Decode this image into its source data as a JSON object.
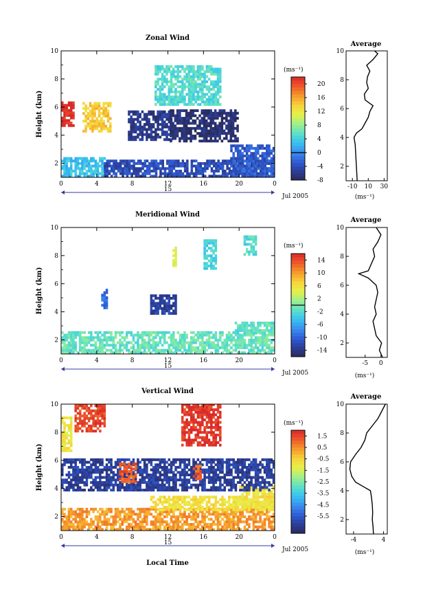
{
  "figure": {
    "date_label": "Jul 2005",
    "xlabel": "Local Time",
    "day_label": "15",
    "unit_label": "(ms⁻¹)",
    "average_title": "Average"
  },
  "chart_data": [
    {
      "type": "heatmap",
      "title": "Zonal Wind",
      "ylabel": "Height (km)",
      "xlim": [
        0,
        24
      ],
      "ylim": [
        1,
        10
      ],
      "xticks": [
        "0",
        "4",
        "8",
        "12",
        "16",
        "20",
        "0"
      ],
      "yticks": [
        "2",
        "4",
        "6",
        "8",
        "10"
      ],
      "colorbar": {
        "unit": "(ms⁻¹)",
        "range": [
          -8,
          22
        ],
        "ticks": [
          "20",
          "16",
          "12",
          "8",
          "4",
          "0",
          "-4",
          "-8"
        ],
        "tick_values": [
          20,
          16,
          12,
          8,
          4,
          0,
          -4,
          -8
        ],
        "contour_level": 0
      },
      "regions": [
        {
          "t": [
            0,
            1.3
          ],
          "z": [
            4.6,
            6.3
          ],
          "v": 22
        },
        {
          "t": [
            2.4,
            5.6
          ],
          "z": [
            4.2,
            6.3
          ],
          "v": 14
        },
        {
          "t": [
            7.5,
            12.5
          ],
          "z": [
            3.6,
            5.6
          ],
          "v": -6
        },
        {
          "t": [
            10.5,
            17.8
          ],
          "z": [
            6.1,
            8.9
          ],
          "v": 5
        },
        {
          "t": [
            12.2,
            19.8
          ],
          "z": [
            3.5,
            5.8
          ],
          "v": -7
        },
        {
          "t": [
            0,
            4.8
          ],
          "z": [
            1.0,
            2.4
          ],
          "v": 3
        },
        {
          "t": [
            4.8,
            24
          ],
          "z": [
            1.0,
            2.1
          ],
          "v": -4
        },
        {
          "t": [
            19.0,
            24
          ],
          "z": [
            1.0,
            3.2
          ],
          "v": -3
        }
      ],
      "profile": {
        "heights": [
          1,
          1.5,
          2,
          2.5,
          3,
          3.5,
          4,
          4.3,
          4.6,
          5,
          5.4,
          5.8,
          6.2,
          6.6,
          7,
          7.4,
          7.8,
          8.2,
          8.6,
          9,
          9.4,
          9.8,
          10
        ],
        "values": [
          -4,
          -4.5,
          -5,
          -5.5,
          -6,
          -6.5,
          -8,
          -5,
          2,
          6,
          10,
          12,
          16,
          6,
          5,
          10,
          8,
          9,
          12,
          8,
          16,
          22,
          18
        ],
        "xlim": [
          -18,
          34
        ],
        "xticks": [
          "-10",
          "10",
          "30"
        ],
        "xtick_values": [
          -10,
          10,
          30
        ],
        "yticks": [
          "2",
          "4",
          "6",
          "8",
          "10"
        ]
      }
    },
    {
      "type": "heatmap",
      "title": "Meridional Wind",
      "ylabel": "Height (km)",
      "xlim": [
        0,
        24
      ],
      "ylim": [
        1,
        10
      ],
      "xticks": [
        "0",
        "4",
        "8",
        "12",
        "16",
        "20",
        "0"
      ],
      "yticks": [
        "2",
        "4",
        "6",
        "8",
        "10"
      ],
      "colorbar": {
        "unit": "(ms⁻¹)",
        "range": [
          -16,
          16
        ],
        "ticks": [
          "14",
          "10",
          "6",
          "2",
          "-2",
          "-6",
          "-10",
          "-14"
        ],
        "tick_values": [
          14,
          10,
          6,
          2,
          -2,
          -6,
          -10,
          -14
        ],
        "contour_level": 0
      },
      "regions": [
        {
          "t": [
            0,
            24
          ],
          "z": [
            1.0,
            2.6
          ],
          "v": -1
        },
        {
          "t": [
            19.5,
            24
          ],
          "z": [
            2.4,
            3.2
          ],
          "v": -1.5
        },
        {
          "t": [
            10.0,
            13.0
          ],
          "z": [
            3.8,
            5.2
          ],
          "v": -13
        },
        {
          "t": [
            4.5,
            5.2
          ],
          "z": [
            4.2,
            5.6
          ],
          "v": -9
        },
        {
          "t": [
            16.0,
            17.5
          ],
          "z": [
            7.0,
            9.0
          ],
          "v": -3
        },
        {
          "t": [
            12.5,
            13.0
          ],
          "z": [
            7.2,
            8.6
          ],
          "v": 4
        },
        {
          "t": [
            20.5,
            22.0
          ],
          "z": [
            8.0,
            9.4
          ],
          "v": -2
        }
      ],
      "profile": {
        "heights": [
          1,
          1.5,
          2,
          2.5,
          3,
          3.5,
          4,
          4.5,
          5,
          5.5,
          6,
          6.5,
          6.8,
          7,
          7.5,
          8,
          8.5,
          9,
          9.5,
          10
        ],
        "values": [
          0.5,
          -0.5,
          0.2,
          -1.5,
          -2,
          -2.5,
          -1.5,
          -2,
          -1.5,
          -1,
          -1.5,
          -4,
          -7,
          -4,
          -3,
          -2,
          -2.5,
          -1,
          0,
          -1.5
        ],
        "xlim": [
          -11,
          2
        ],
        "xticks": [
          "-5",
          "0"
        ],
        "xtick_values": [
          -5,
          0
        ],
        "yticks": [
          "2",
          "4",
          "6",
          "8",
          "10"
        ]
      }
    },
    {
      "type": "heatmap",
      "title": "Vertical Wind",
      "ylabel": "Height (km)",
      "xlim": [
        0,
        24
      ],
      "ylim": [
        1,
        10
      ],
      "xticks": [
        "0",
        "4",
        "8",
        "12",
        "16",
        "20",
        "0"
      ],
      "yticks": [
        "2",
        "4",
        "6",
        "8",
        "10"
      ],
      "colorbar": {
        "unit": "(ms⁻¹)",
        "range": [
          -7,
          2
        ],
        "ticks": [
          "1.5",
          "0.5",
          "-0.5",
          "-1.5",
          "-2.5",
          "-3.5",
          "-4.5",
          "-5.5"
        ],
        "tick_values": [
          1.5,
          0.5,
          -0.5,
          -1.5,
          -2.5,
          -3.5,
          -4.5,
          -5.5
        ],
        "contour_level": null
      },
      "regions": [
        {
          "t": [
            0,
            24
          ],
          "z": [
            1.0,
            2.6
          ],
          "v": 0.3
        },
        {
          "t": [
            10,
            24
          ],
          "z": [
            2.4,
            3.4
          ],
          "v": -0.8
        },
        {
          "t": [
            20,
            24
          ],
          "z": [
            2.6,
            4.2
          ],
          "v": -0.9
        },
        {
          "t": [
            0,
            1.2
          ],
          "z": [
            6.6,
            9.0
          ],
          "v": -1.0
        },
        {
          "t": [
            1.5,
            4.8
          ],
          "z": [
            8.0,
            10.0
          ],
          "v": 1.5
        },
        {
          "t": [
            13.5,
            18.0
          ],
          "z": [
            7.0,
            10.0
          ],
          "v": 1.8
        },
        {
          "t": [
            0,
            24
          ],
          "z": [
            3.8,
            6.0
          ],
          "v": -6.2
        },
        {
          "t": [
            6.5,
            8.5
          ],
          "z": [
            4.4,
            5.8
          ],
          "v": 1.2
        },
        {
          "t": [
            14.8,
            15.6
          ],
          "z": [
            4.6,
            5.6
          ],
          "v": 1.2
        }
      ],
      "profile": {
        "heights": [
          1,
          1.5,
          2,
          2.5,
          3,
          3.5,
          4,
          4.3,
          4.6,
          5,
          5.5,
          6,
          6.5,
          7,
          7.5,
          8,
          8.5,
          9,
          9.5,
          10
        ],
        "values": [
          1.3,
          1.2,
          1.0,
          1.1,
          1.0,
          0.8,
          0.5,
          -1.5,
          -3.5,
          -4.5,
          -5.0,
          -4.8,
          -3.5,
          -2.0,
          -1.0,
          -0.5,
          1.0,
          2.5,
          3.5,
          4.5
        ],
        "xlim": [
          -6,
          5
        ],
        "xticks": [
          "-4",
          "4"
        ],
        "xtick_values": [
          -4,
          4
        ],
        "yticks": [
          "2",
          "4",
          "6",
          "8",
          "10"
        ]
      }
    }
  ]
}
